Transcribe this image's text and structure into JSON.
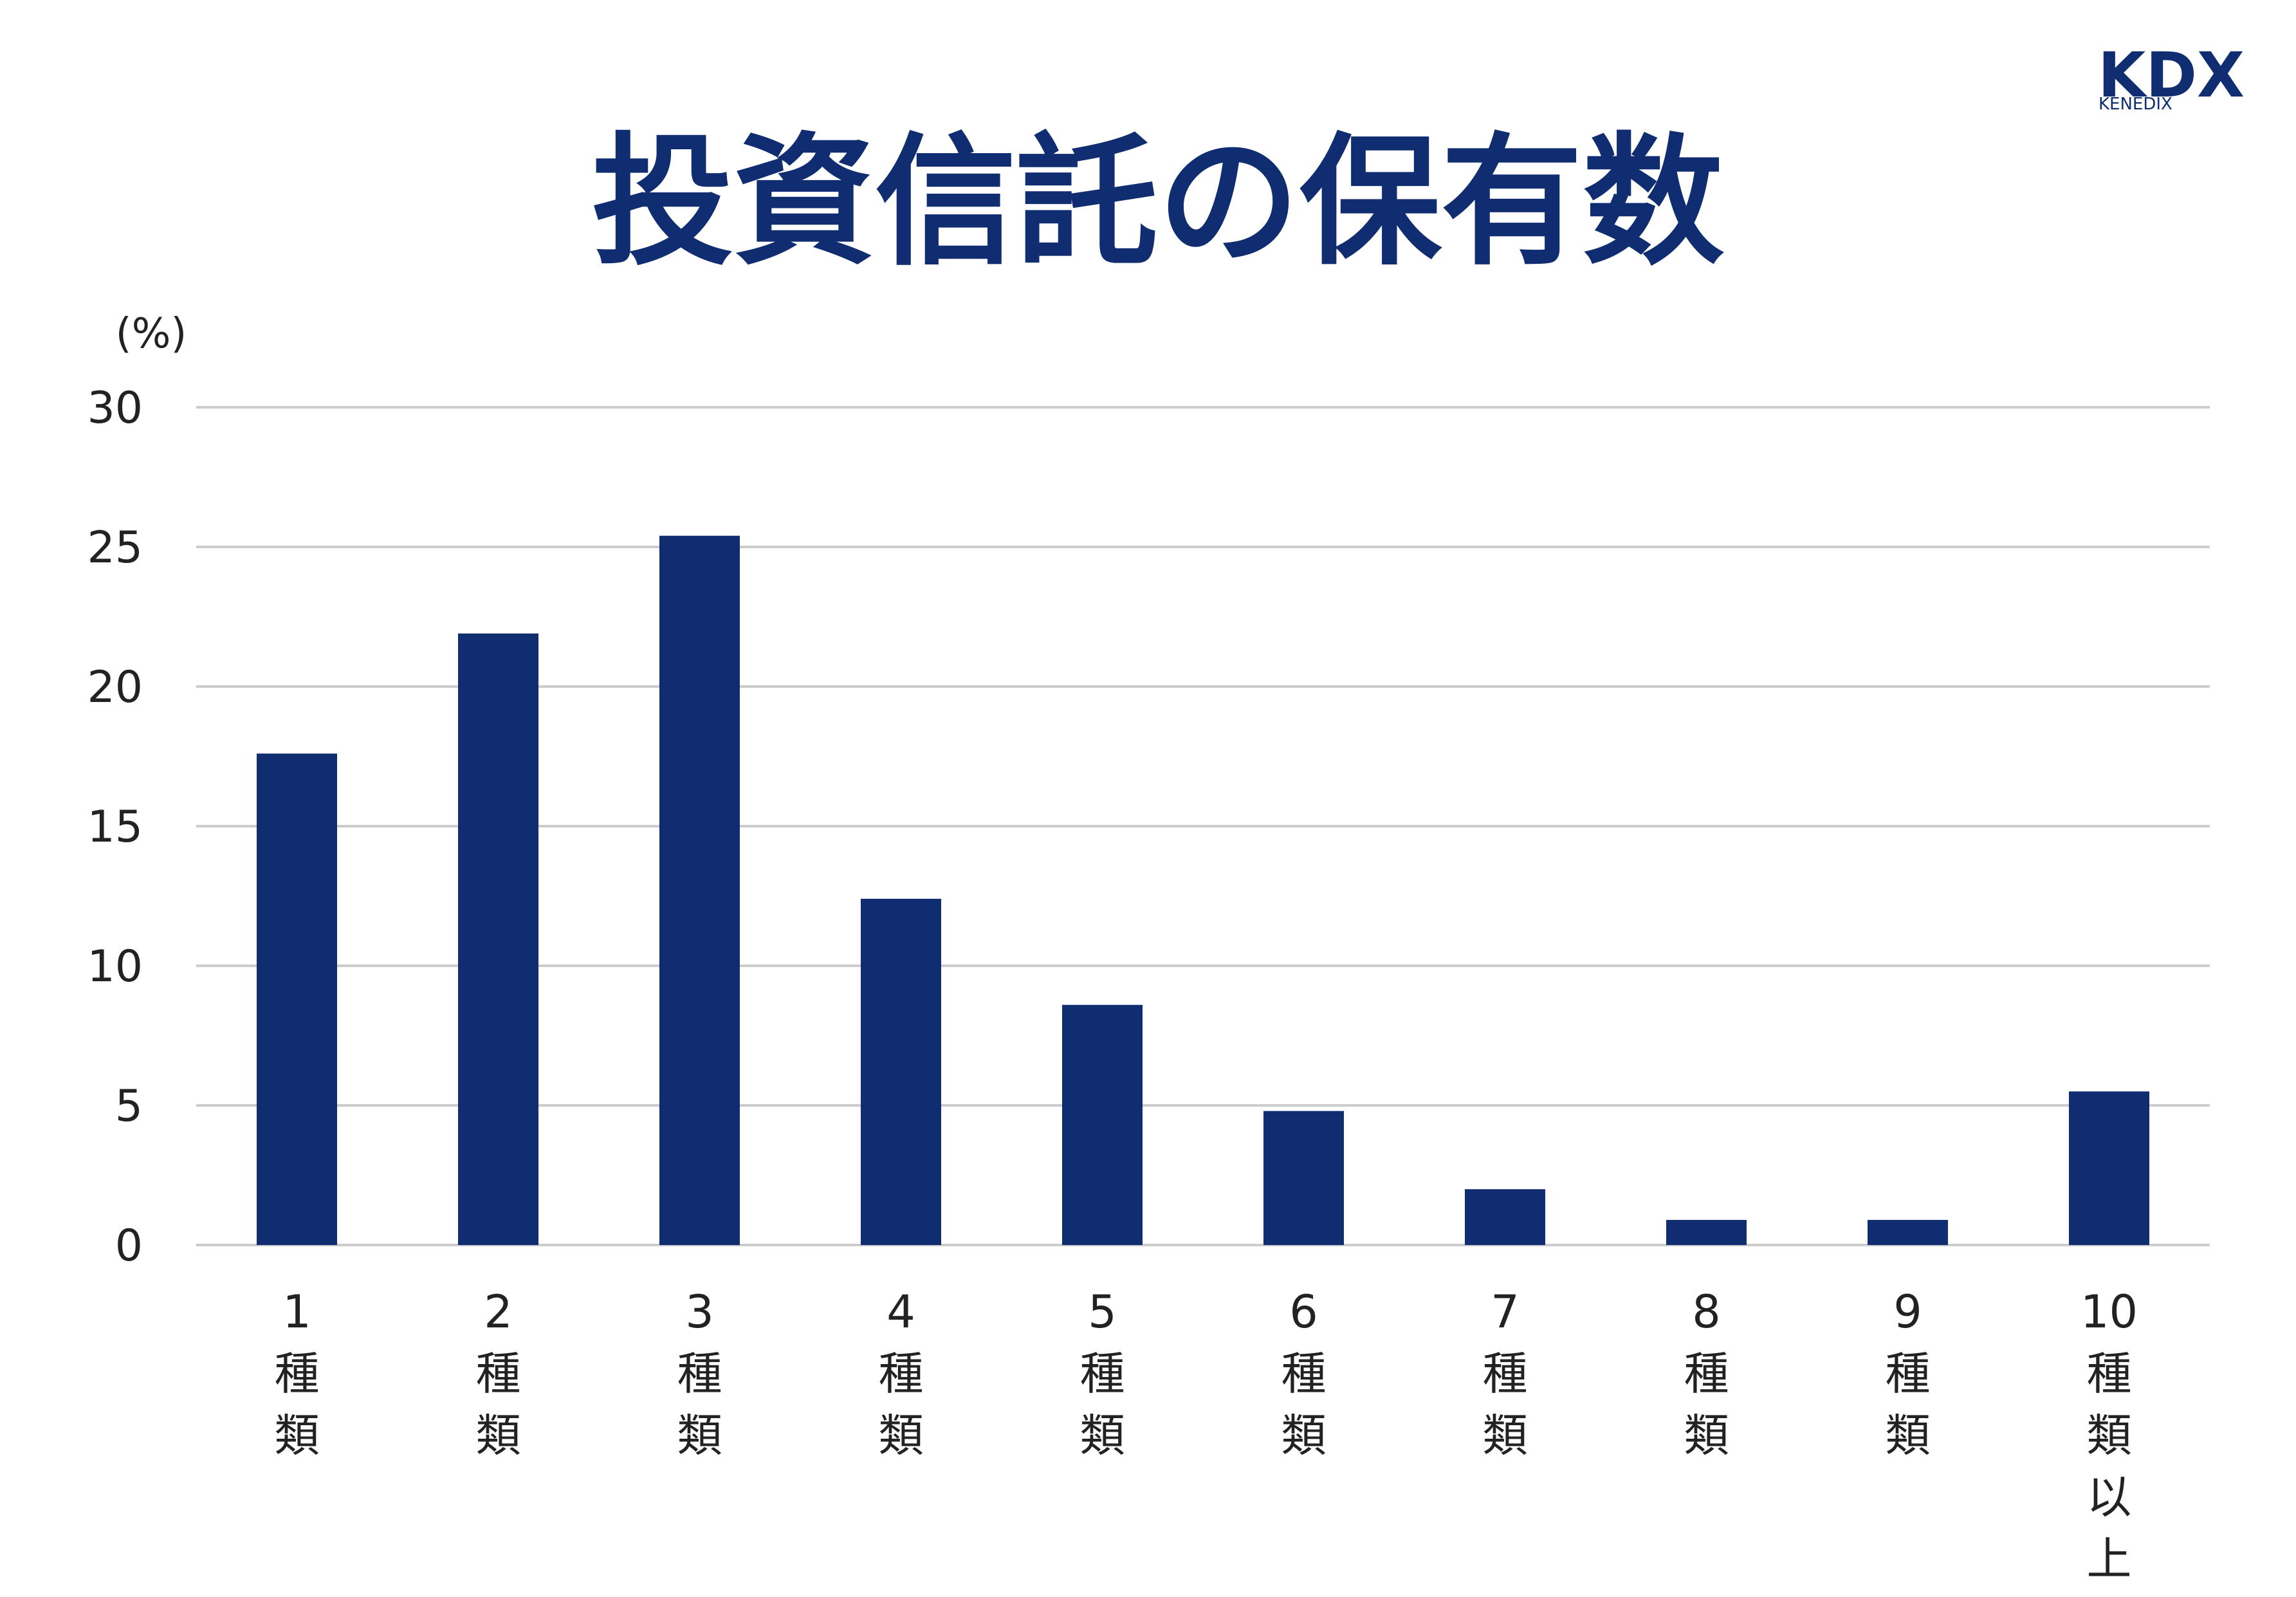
{
  "logo": {
    "mark": "KDX",
    "sub": "KENEDIX"
  },
  "chart_data": {
    "type": "bar",
    "title": "投資信託の保有数",
    "ylabel": "(%)",
    "xlabel": "",
    "ylim": [
      0,
      30
    ],
    "yticks": [
      0,
      5,
      10,
      15,
      20,
      25,
      30
    ],
    "grid": true,
    "bar_color": "#0f2d70",
    "categories": [
      [
        "1",
        "種",
        "類"
      ],
      [
        "2",
        "種",
        "類"
      ],
      [
        "3",
        "種",
        "類"
      ],
      [
        "4",
        "種",
        "類"
      ],
      [
        "5",
        "種",
        "類"
      ],
      [
        "6",
        "種",
        "類"
      ],
      [
        "7",
        "種",
        "類"
      ],
      [
        "8",
        "種",
        "類"
      ],
      [
        "9",
        "種",
        "類"
      ],
      [
        "10",
        "種",
        "類",
        "以",
        "上"
      ]
    ],
    "values": [
      17.6,
      21.9,
      25.4,
      12.4,
      8.6,
      4.8,
      2.0,
      0.9,
      0.9,
      5.5
    ]
  }
}
